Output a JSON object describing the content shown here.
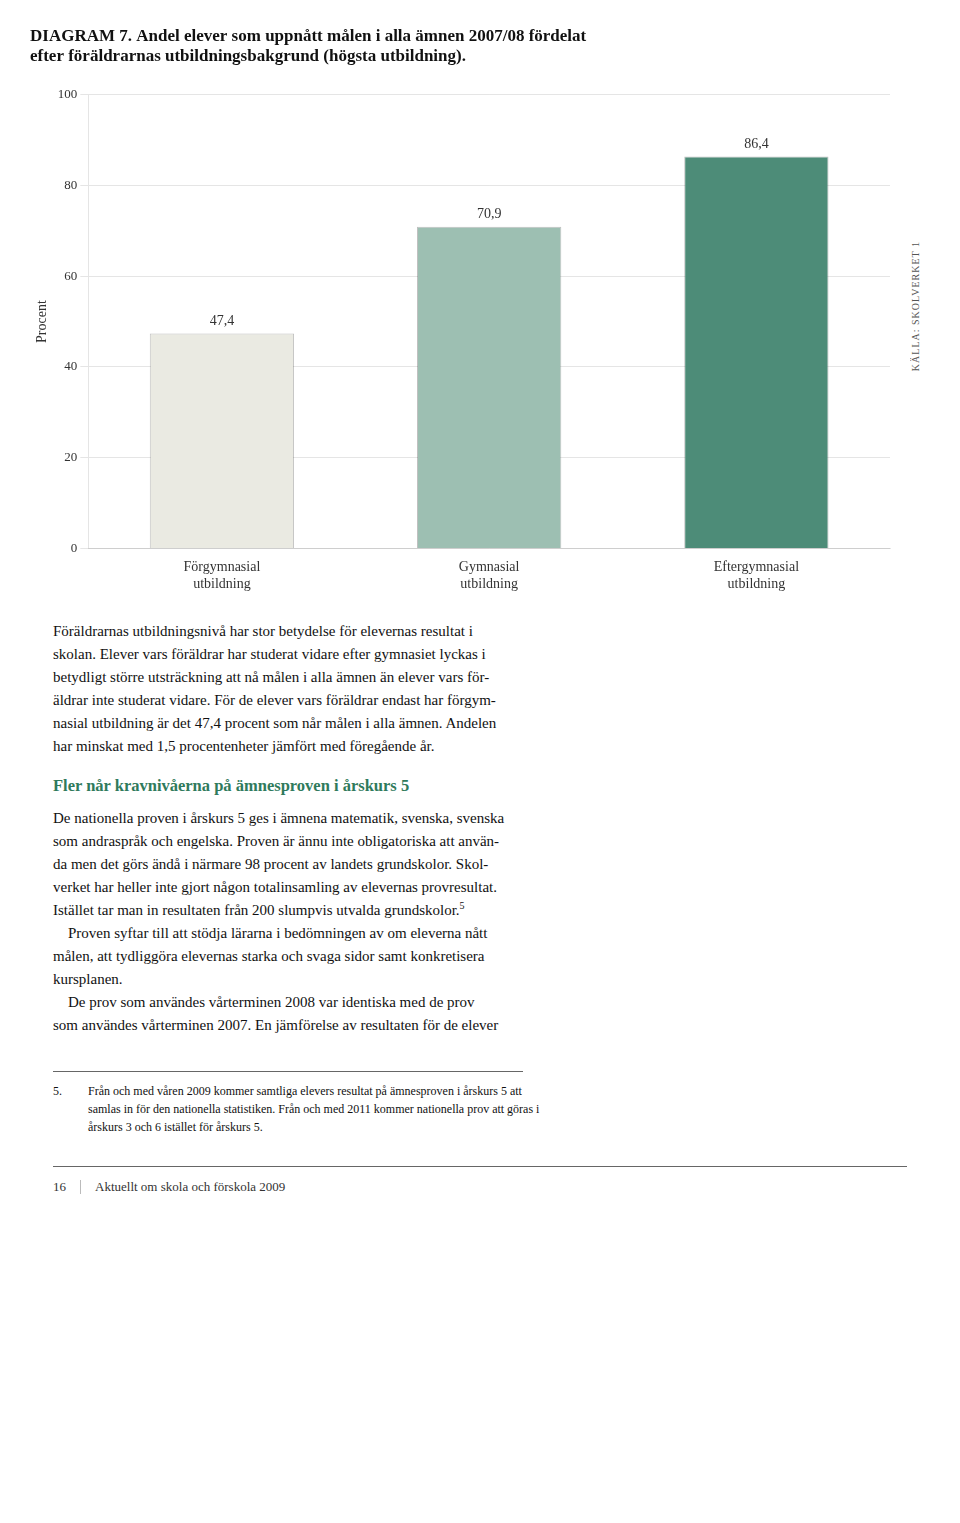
{
  "chart_data": {
    "type": "bar",
    "title": "DIAGRAM 7. Andel elever som uppnått målen i alla ämnen 2007/08 fördelat\nefter föräldrarnas utbildningsbakgrund (högsta utbildning).",
    "categories": [
      "Förgymnasial\nutbildning",
      "Gymnasial\nutbildning",
      "Eftergymnasial\nutbildning"
    ],
    "values": [
      47.4,
      70.9,
      86.4
    ],
    "value_labels": [
      "47,4",
      "70,9",
      "86,4"
    ],
    "data_labels": true,
    "colors": [
      "#eaeae2",
      "#9dbfb2",
      "#4d8c78"
    ],
    "ylabel": "Procent",
    "ylim": [
      0,
      100
    ],
    "yticks": [
      0,
      20,
      40,
      60,
      80,
      100
    ],
    "grid": true,
    "source": "KÄLLA: SKOLVERKET 1",
    "body": [
      {
        "lines": [
          "Föräldrarnas utbildningsnivå har stor betydelse för elevernas resultat i",
          "skolan. Elever vars föräldrar har studerat vidare efter gymnasiet lyckas i",
          "betydligt större utsträckning att nå målen i alla ämnen än elever vars för-",
          "äldrar inte studerat vidare. För de elever vars föräldrar endast har förgym-",
          "nasial utbildning är det 47,4 procent som når målen i alla ämnen. Andelen",
          "har minskat med 1,5 procentenheter jämfört med föregående år."
        ]
      },
      {
        "heading": "Fler når kravnivåerna på ämnesproven i årskurs 5"
      },
      {
        "lines": [
          "De nationella proven i årskurs 5 ges i ämnena matematik, svenska, svenska",
          "som andraspråk och engelska. Proven är ännu inte obligatoriska att använ-",
          "da men det görs ändå i närmare 98 procent av landets grundskolor. Skol-",
          "verket har heller inte gjort någon totalinsamling av elevernas provresultat.",
          "Istället tar man in resultaten från 200 slumpvis utvalda grundskolor."
        ],
        "sup": "5"
      },
      {
        "lines": [
          "    Proven syftar till att stödja lärarna i bedömningen av om eleverna nått",
          "målen, att tydliggöra elevernas starka och svaga sidor samt konkretisera",
          "kursplanen."
        ]
      },
      {
        "lines": [
          "    De prov som användes vårterminen 2008 var identiska med de prov",
          "som användes vårterminen 2007. En jämförelse av resultaten för de elever"
        ]
      }
    ],
    "footnote": {
      "number": "5.",
      "lines": [
        "   Från och med våren 2009 kommer samtliga elevers resultat på ämnesproven i årskurs 5 att",
        "   samlas in för den nationella statistiken. Från och med 2011 kommer nationella prov att göras i",
        "   årskurs 3 och 6 istället för årskurs 5."
      ]
    },
    "footer": {
      "number": "16",
      "text": "Aktuellt om skola och förskola 2009"
    }
  }
}
